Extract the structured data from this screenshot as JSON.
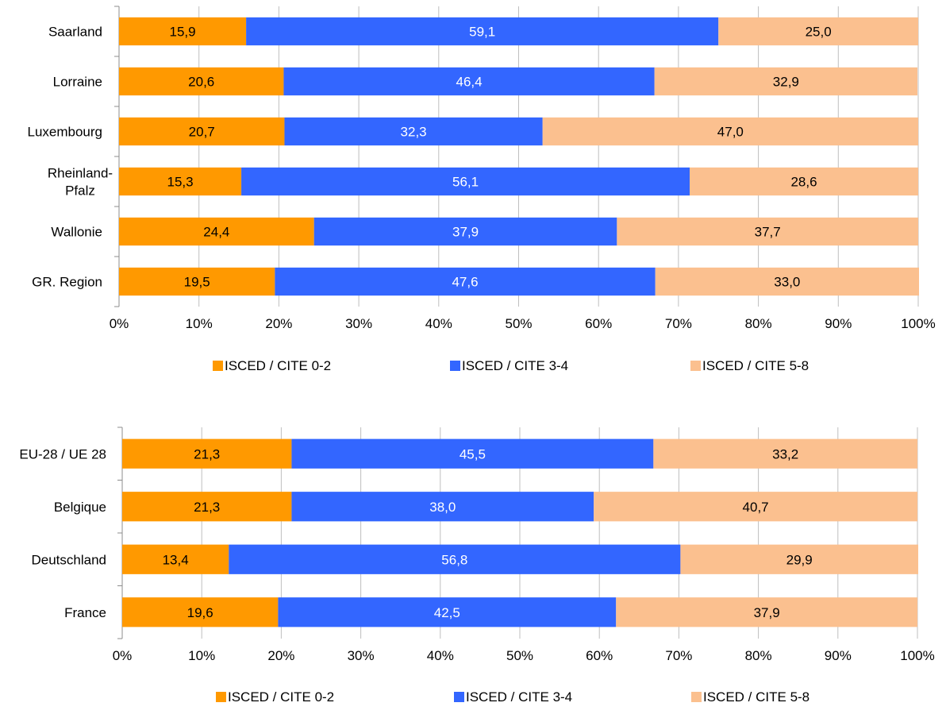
{
  "colors": {
    "isced_0_2": "#FF9900",
    "isced_3_4": "#3366FF",
    "isced_5_8": "#FBC08F",
    "grid": "#BFBFBF",
    "axis": "#8C8C8C",
    "text": "#000000",
    "label_on_blue": "#FFFFFF"
  },
  "chart_data": [
    {
      "type": "bar",
      "orientation": "horizontal",
      "stacked": "percent",
      "categories": [
        "Saarland",
        "Lorraine",
        "Luxembourg",
        "Rheinland-Pfalz",
        "Wallonie",
        "GR. Region"
      ],
      "category_lines": [
        [
          "Saarland"
        ],
        [
          "Lorraine"
        ],
        [
          "Luxembourg"
        ],
        [
          "Rheinland-",
          "Pfalz"
        ],
        [
          "Wallonie"
        ],
        [
          "GR. Region"
        ]
      ],
      "series": [
        {
          "name": "ISCED / CITE 0-2",
          "values": [
            15.9,
            20.6,
            20.7,
            15.3,
            24.4,
            19.5
          ],
          "labels": [
            "15,9",
            "20,6",
            "20,7",
            "15,3",
            "24,4",
            "19,5"
          ]
        },
        {
          "name": "ISCED / CITE 3-4",
          "values": [
            59.1,
            46.4,
            32.3,
            56.1,
            37.9,
            47.6
          ],
          "labels": [
            "59,1",
            "46,4",
            "32,3",
            "56,1",
            "37,9",
            "47,6"
          ]
        },
        {
          "name": "ISCED / CITE 5-8",
          "values": [
            25.0,
            32.9,
            47.0,
            28.6,
            37.7,
            33.0
          ],
          "labels": [
            "25,0",
            "32,9",
            "47,0",
            "28,6",
            "37,7",
            "33,0"
          ]
        }
      ],
      "xlim": [
        0,
        100
      ],
      "x_ticks": [
        "0%",
        "10%",
        "20%",
        "30%",
        "40%",
        "50%",
        "60%",
        "70%",
        "80%",
        "90%",
        "100%"
      ],
      "grid": "vertical",
      "legend": "bottom"
    },
    {
      "type": "bar",
      "orientation": "horizontal",
      "stacked": "percent",
      "categories": [
        "EU-28 / UE 28",
        "Belgique",
        "Deutschland",
        "France"
      ],
      "category_lines": [
        [
          "EU-28 / UE 28"
        ],
        [
          "Belgique"
        ],
        [
          "Deutschland"
        ],
        [
          "France"
        ]
      ],
      "series": [
        {
          "name": "ISCED / CITE 0-2",
          "values": [
            21.3,
            21.3,
            13.4,
            19.6
          ],
          "labels": [
            "21,3",
            "21,3",
            "13,4",
            "19,6"
          ]
        },
        {
          "name": "ISCED / CITE 3-4",
          "values": [
            45.5,
            38.0,
            56.8,
            42.5
          ],
          "labels": [
            "45,5",
            "38,0",
            "56,8",
            "42,5"
          ]
        },
        {
          "name": "ISCED / CITE 5-8",
          "values": [
            33.2,
            40.7,
            29.9,
            37.9
          ],
          "labels": [
            "33,2",
            "40,7",
            "29,9",
            "37,9"
          ]
        }
      ],
      "xlim": [
        0,
        100
      ],
      "x_ticks": [
        "0%",
        "10%",
        "20%",
        "30%",
        "40%",
        "50%",
        "60%",
        "70%",
        "80%",
        "90%",
        "100%"
      ],
      "grid": "vertical",
      "legend": "bottom"
    }
  ]
}
